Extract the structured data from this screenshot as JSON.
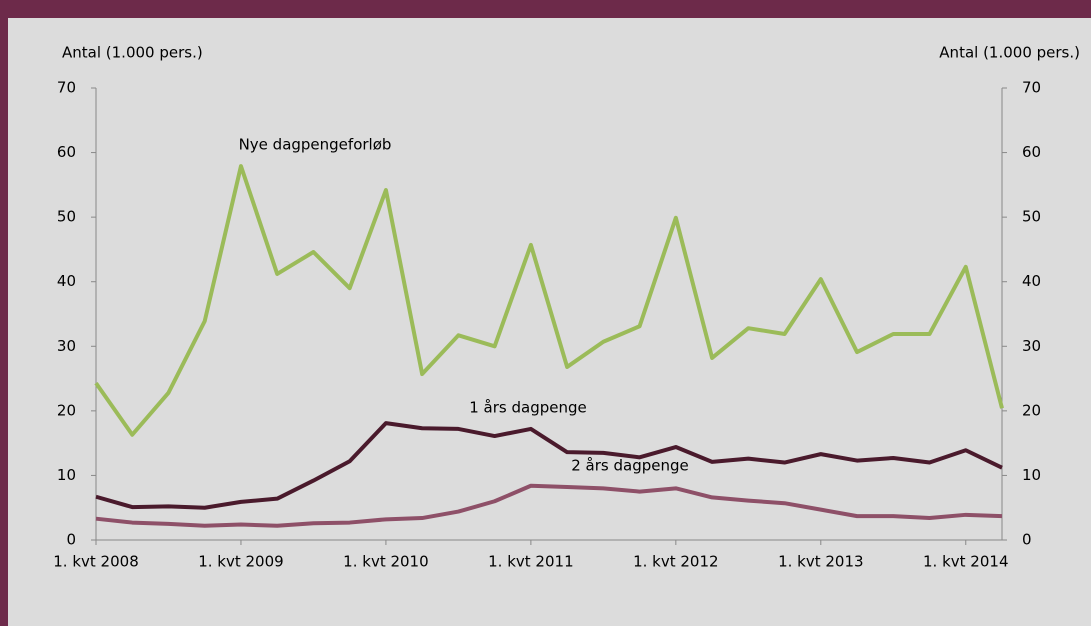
{
  "chart_data": {
    "type": "line",
    "categories": [
      "1. kvt 2008",
      null,
      null,
      null,
      "1. kvt 2009",
      null,
      null,
      null,
      "1. kvt 2010",
      null,
      null,
      null,
      "1. kvt 2011",
      null,
      null,
      null,
      "1. kvt 2012",
      null,
      null,
      null,
      "1. kvt 2013",
      null,
      null,
      null,
      "1. kvt 2014",
      null
    ],
    "series": [
      {
        "name": "Nye dagpengeforløb",
        "color": "#9bbb59",
        "values": [
          24.3,
          16.3,
          22.8,
          33.9,
          57.9,
          41.2,
          44.6,
          39.0,
          54.2,
          25.7,
          31.7,
          30.0,
          45.7,
          26.8,
          30.7,
          33.1,
          49.9,
          28.2,
          32.8,
          31.9,
          40.4,
          29.1,
          31.9,
          31.9,
          42.3,
          20.4
        ]
      },
      {
        "name": "1 års dagpenge",
        "color": "#4a1a2c",
        "values": [
          6.7,
          5.1,
          5.2,
          5.0,
          5.9,
          6.4,
          9.2,
          12.2,
          18.1,
          17.3,
          17.2,
          16.1,
          17.2,
          13.6,
          13.5,
          12.8,
          14.4,
          12.1,
          12.6,
          12.0,
          13.3,
          12.3,
          12.7,
          12.0,
          13.9,
          11.2
        ]
      },
      {
        "name": "2 års dagpenge",
        "color": "#8e5068",
        "values": [
          3.3,
          2.7,
          2.5,
          2.2,
          2.4,
          2.2,
          2.6,
          2.7,
          3.2,
          3.4,
          4.4,
          6.0,
          8.4,
          8.2,
          8.0,
          7.5,
          8.0,
          6.6,
          6.1,
          5.7,
          4.7,
          3.7,
          3.7,
          3.4,
          3.9,
          3.7
        ]
      }
    ],
    "ylabel": "Antal (1.000 pers.)",
    "y2label": "Antal (1.000 pers.)",
    "ylim": [
      0,
      70
    ],
    "yticks": [
      0,
      10,
      20,
      30,
      40,
      50,
      60,
      70
    ],
    "y2lim": [
      0,
      70
    ],
    "y2ticks": [
      0,
      10,
      20,
      30,
      40,
      50,
      60,
      70
    ]
  }
}
